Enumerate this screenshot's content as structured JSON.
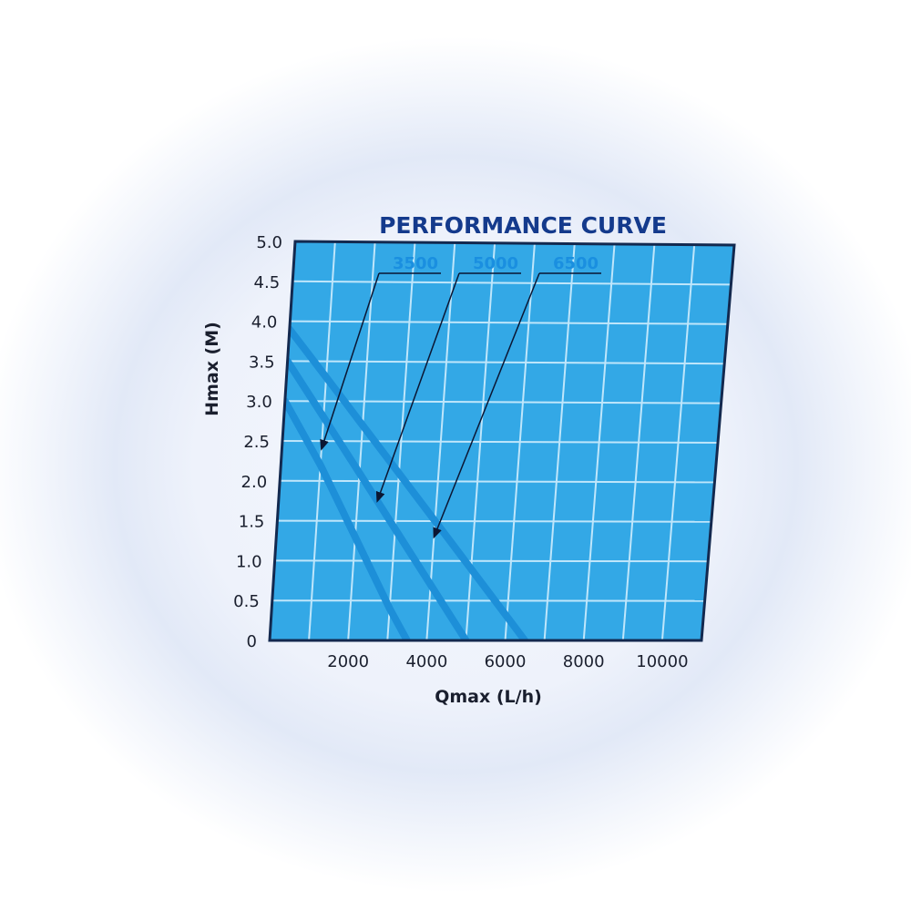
{
  "chart_data": {
    "type": "line",
    "title": "PERFORMANCE CURVE",
    "xlabel": "Qmax (L/h)",
    "ylabel": "Hmax (M)",
    "xlim": [
      0,
      11000
    ],
    "ylim": [
      0,
      5.0
    ],
    "x_ticks": [
      2000,
      4000,
      6000,
      8000,
      10000
    ],
    "x_tick_labels": [
      "2000",
      "4000",
      "6000",
      "8000",
      "10000"
    ],
    "y_ticks": [
      0,
      0.5,
      1.0,
      1.5,
      2.0,
      2.5,
      3.0,
      3.5,
      4.0,
      4.5,
      5.0
    ],
    "y_tick_labels": [
      "0",
      "0.5",
      "1.0",
      "1.5",
      "2.0",
      "2.5",
      "3.0",
      "3.5",
      "4.0",
      "4.5",
      "5.0"
    ],
    "grid": true,
    "legend_placement": "top-center (callout labels with arrows)",
    "colors": {
      "plot_background": "#33a8e6",
      "grid": "#bfe6fb",
      "frame": "#13294f",
      "curve": "#1d8fd8",
      "title": "#143a8c",
      "callout_label": "#1a8fe0",
      "text": "#1a1f2e"
    },
    "series": [
      {
        "name": "3500",
        "x": [
          0,
          500,
          1000,
          1500,
          2000,
          2500,
          3000,
          3500
        ],
        "y": [
          3.0,
          2.6,
          2.2,
          1.75,
          1.3,
          0.85,
          0.4,
          0
        ]
      },
      {
        "name": "5000",
        "x": [
          0,
          500,
          1000,
          1500,
          2000,
          2500,
          3000,
          3500,
          4000,
          4500,
          5000
        ],
        "y": [
          3.5,
          3.15,
          2.8,
          2.45,
          2.1,
          1.75,
          1.4,
          1.05,
          0.7,
          0.35,
          0
        ]
      },
      {
        "name": "6500",
        "x": [
          0,
          500,
          1000,
          1500,
          2000,
          2500,
          3000,
          3500,
          4000,
          4500,
          5000,
          5500,
          6000,
          6500
        ],
        "y": [
          3.9,
          3.6,
          3.3,
          3.0,
          2.7,
          2.4,
          2.1,
          1.8,
          1.5,
          1.2,
          0.9,
          0.6,
          0.3,
          0
        ]
      }
    ],
    "callouts": [
      {
        "label": "3500",
        "series": "3500",
        "point": [
          1000,
          2.4
        ]
      },
      {
        "label": "5000",
        "series": "5000",
        "point": [
          2500,
          1.75
        ]
      },
      {
        "label": "6500",
        "series": "6500",
        "point": [
          4000,
          1.3
        ]
      }
    ]
  }
}
